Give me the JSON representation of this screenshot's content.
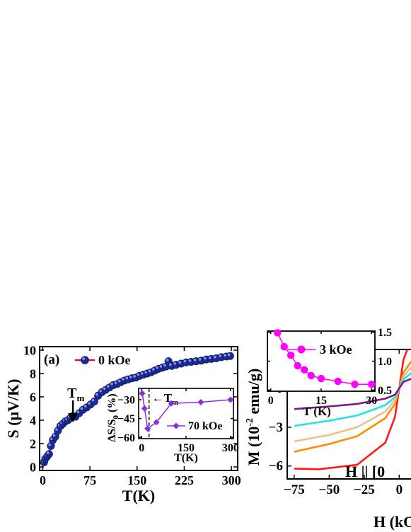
{
  "figure": {
    "colors": {
      "main_line": "#e0141e",
      "main_marker": "#1c2a94",
      "inset_purple": "#8a2be2",
      "inset_magenta": "#ff00ff",
      "m_red": "#ff1a1a",
      "m_orange": "#ff8c00",
      "m_tan": "#e8c48a",
      "m_cyan": "#22e0e8",
      "m_purple": "#7a1a8a"
    }
  },
  "chart_data": [
    {
      "id": "panel-a-main",
      "type": "line",
      "panel_label": "(a)",
      "xlabel": "T(K)",
      "ylabel_parts": [
        "S (",
        "μ",
        "V/K)"
      ],
      "xlim": [
        -5,
        310
      ],
      "ylim": [
        -0.3,
        10.3
      ],
      "xticks": [
        0,
        75,
        150,
        225,
        300
      ],
      "yticks": [
        0,
        2,
        4,
        6,
        8,
        10
      ],
      "legend": "top-left",
      "annotation": {
        "text": "T",
        "sub": "m",
        "x": 48
      },
      "series": [
        {
          "name": "0 kOe",
          "x": [
            2,
            4,
            7,
            10,
            13,
            16,
            20,
            24,
            28,
            32,
            36,
            40,
            44,
            48,
            52,
            58,
            64,
            70,
            76,
            82,
            88,
            94,
            100,
            106,
            112,
            118,
            124,
            130,
            136,
            142,
            148,
            154,
            160,
            166,
            172,
            178,
            184,
            190,
            196,
            200,
            205,
            212,
            220,
            228,
            236,
            244,
            252,
            260,
            268,
            276,
            284,
            292,
            298
          ],
          "y": [
            0.4,
            0.7,
            0.9,
            1.1,
            1.8,
            2.3,
            2.6,
            3.1,
            3.5,
            3.7,
            3.9,
            4.0,
            4.2,
            4.35,
            4.3,
            4.6,
            4.9,
            5.1,
            5.35,
            5.6,
            6.1,
            6.4,
            6.6,
            6.8,
            7.0,
            7.1,
            7.25,
            7.4,
            7.5,
            7.6,
            7.65,
            7.8,
            7.9,
            8.0,
            8.1,
            8.25,
            8.4,
            8.5,
            8.6,
            9.05,
            8.65,
            8.75,
            8.85,
            8.95,
            9.0,
            9.05,
            9.1,
            9.2,
            9.25,
            9.3,
            9.4,
            9.45,
            9.5
          ]
        }
      ]
    },
    {
      "id": "panel-a-inset",
      "type": "line",
      "xlabel": "T(K)",
      "ylabel_parts": [
        "ΔS/S",
        "0",
        " (%)"
      ],
      "xlim": [
        -10,
        310
      ],
      "ylim": [
        -61,
        -21
      ],
      "xticks": [
        0,
        150,
        300
      ],
      "yticks": [
        -60,
        -45,
        -30
      ],
      "legend": "bottom-right",
      "annotation": {
        "text": "←T",
        "sub": "m",
        "x": 25
      },
      "series": [
        {
          "name": "70 kOe",
          "x": [
            2,
            10,
            20,
            50,
            100,
            200,
            300
          ],
          "y": [
            -25,
            -37,
            -53,
            -48,
            -33,
            -32,
            -30
          ]
        }
      ]
    },
    {
      "id": "panel-b-inset",
      "type": "line",
      "xlabel": "T (K)",
      "xlim": [
        -1,
        31
      ],
      "ylim": [
        0.48,
        1.52
      ],
      "xticks": [
        0,
        15,
        30
      ],
      "yticks": [
        0.5,
        1.0,
        1.5
      ],
      "ytick_labels": [
        "0.5",
        "1.0",
        "1.5"
      ],
      "legend": "top-right",
      "series": [
        {
          "name": "3 kOe",
          "x": [
            2,
            4,
            6,
            8,
            10,
            12,
            15,
            20,
            25,
            30
          ],
          "y": [
            1.49,
            1.25,
            1.1,
            0.92,
            0.85,
            0.75,
            0.7,
            0.65,
            0.6,
            0.6
          ]
        }
      ]
    },
    {
      "id": "panel-b-main",
      "type": "line",
      "xlabel": "H (kO",
      "ylabel_parts": [
        "M (10",
        "-2",
        " emu/g)"
      ],
      "xlim": [
        -80,
        18
      ],
      "ylim": [
        -7,
        3
      ],
      "xticks": [
        -75,
        -50,
        -25,
        0
      ],
      "yticks": [
        -6,
        -3,
        0
      ],
      "annotation": {
        "text": "H || [0"
      },
      "series": [
        {
          "color_key": "m_red",
          "x": [
            -75,
            -57,
            -30,
            -10,
            -3,
            0,
            3,
            10,
            18
          ],
          "y": [
            -6.2,
            -6.25,
            -5.9,
            -4.2,
            -2.2,
            0,
            2.2,
            4.2,
            6.0
          ]
        },
        {
          "color_key": "m_orange",
          "x": [
            -75,
            -50,
            -30,
            -10,
            -3,
            0,
            3,
            10,
            18
          ],
          "y": [
            -4.9,
            -4.3,
            -3.7,
            -2.3,
            -1.2,
            0,
            1.2,
            2.3,
            3.5
          ]
        },
        {
          "color_key": "m_tan",
          "x": [
            -75,
            -50,
            -30,
            -10,
            -3,
            0,
            3,
            10,
            18
          ],
          "y": [
            -4.1,
            -3.6,
            -3.0,
            -1.8,
            -0.9,
            0,
            0.9,
            1.8,
            2.6
          ]
        },
        {
          "color_key": "m_cyan",
          "x": [
            -75,
            -50,
            -30,
            -10,
            -3,
            0,
            3,
            10,
            18
          ],
          "y": [
            -2.9,
            -2.5,
            -2.1,
            -1.3,
            -0.7,
            0,
            0.7,
            1.3,
            1.9
          ]
        },
        {
          "color_key": "m_purple",
          "x": [
            -75,
            -50,
            -30,
            -10,
            -3,
            0,
            3,
            10,
            18
          ],
          "y": [
            -1.6,
            -1.4,
            -1.2,
            -0.8,
            -0.5,
            0,
            0.5,
            0.8,
            1.0
          ]
        }
      ]
    }
  ]
}
